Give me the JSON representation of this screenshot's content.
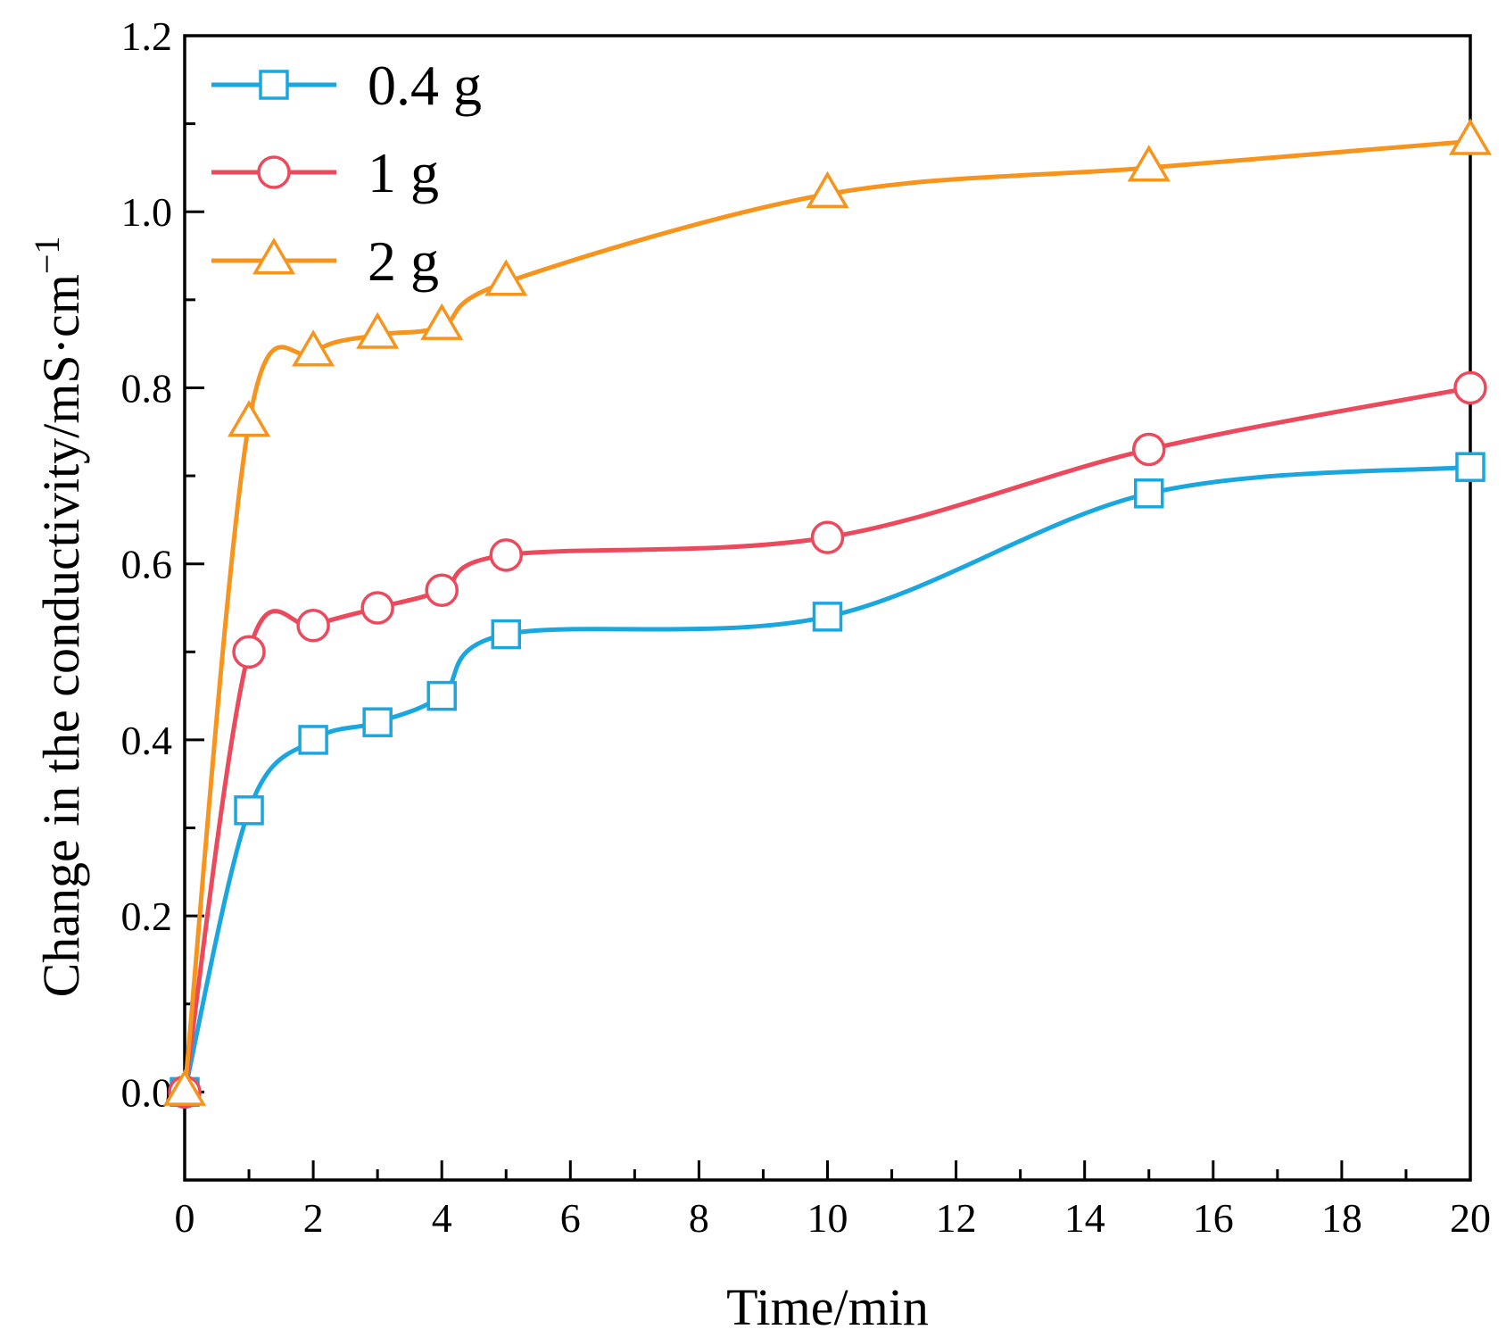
{
  "chart_data": {
    "type": "line",
    "title": "",
    "xlabel": "Time/min",
    "ylabel": "Change in the conductivity/mS·cm",
    "ylabel_superscript": "−1",
    "xlim": [
      0,
      20
    ],
    "ylim": [
      -0.1,
      1.2
    ],
    "xticks": [
      0,
      2,
      4,
      6,
      8,
      10,
      12,
      14,
      16,
      18,
      20
    ],
    "yticks": [
      0.0,
      0.2,
      0.4,
      0.6,
      0.8,
      1.0,
      1.2
    ],
    "xtick_labels": [
      "0",
      "2",
      "4",
      "6",
      "8",
      "10",
      "12",
      "14",
      "16",
      "18",
      "20"
    ],
    "ytick_labels": [
      "0.0",
      "0.2",
      "0.4",
      "0.6",
      "0.8",
      "1.0",
      "1.2"
    ],
    "grid": false,
    "legend_position": "top-left",
    "x": [
      0,
      1,
      2,
      3,
      4,
      5,
      10,
      15,
      20
    ],
    "series": [
      {
        "name": "0.4 g",
        "marker": "square",
        "color": "#1aa7df",
        "values": [
          0.0,
          0.32,
          0.4,
          0.42,
          0.45,
          0.52,
          0.54,
          0.68,
          0.71
        ]
      },
      {
        "name": "1 g",
        "marker": "circle",
        "color": "#ec4a5c",
        "values": [
          0.0,
          0.5,
          0.53,
          0.55,
          0.57,
          0.61,
          0.63,
          0.73,
          0.8
        ]
      },
      {
        "name": "2 g",
        "marker": "triangle",
        "color": "#f7941d",
        "values": [
          0.0,
          0.76,
          0.84,
          0.86,
          0.87,
          0.92,
          1.02,
          1.05,
          1.08
        ]
      }
    ]
  }
}
